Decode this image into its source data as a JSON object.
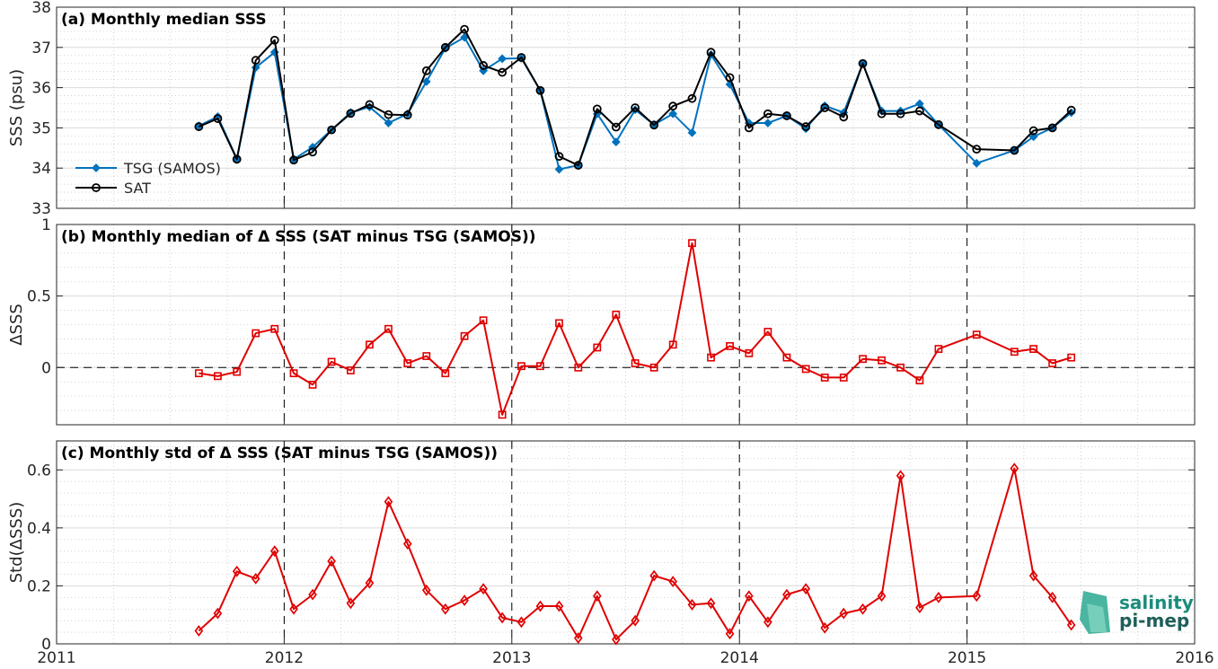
{
  "colors": {
    "tsg": "#0072BD",
    "sat": "#000000",
    "delta": "#E00000"
  },
  "logo": {
    "line1": "salinity",
    "line2": "pi-mep"
  },
  "chart_data": [
    {
      "type": "line",
      "title": "(a) Monthly median SSS",
      "ylabel": "SSS (psu)",
      "xlim": [
        2011,
        2016
      ],
      "ylim": [
        33,
        38
      ],
      "xticks": [
        2011,
        2012,
        2013,
        2014,
        2015,
        2016
      ],
      "yticks": [
        33,
        34,
        35,
        36,
        37,
        38
      ],
      "legend": "left",
      "series": [
        {
          "name": "TSG (SAMOS)",
          "color": "#0072BD",
          "marker": "filled-diamond",
          "x": [
            2011.625,
            2011.708,
            2011.792,
            2011.875,
            2011.958,
            2012.042,
            2012.125,
            2012.208,
            2012.292,
            2012.375,
            2012.458,
            2012.542,
            2012.625,
            2012.708,
            2012.792,
            2012.875,
            2012.958,
            2013.042,
            2013.125,
            2013.208,
            2013.292,
            2013.375,
            2013.458,
            2013.542,
            2013.625,
            2013.708,
            2013.792,
            2013.875,
            2013.958,
            2014.042,
            2014.125,
            2014.208,
            2014.292,
            2014.375,
            2014.458,
            2014.542,
            2014.625,
            2014.708,
            2014.792,
            2014.875,
            2015.042,
            2015.208,
            2015.292,
            2015.375,
            2015.458
          ],
          "values": [
            35.05,
            35.28,
            34.23,
            36.5,
            36.88,
            34.22,
            34.52,
            34.95,
            35.38,
            35.52,
            35.12,
            35.35,
            36.15,
            36.98,
            37.25,
            36.42,
            36.72,
            36.73,
            35.93,
            33.97,
            34.07,
            35.35,
            34.65,
            35.45,
            35.08,
            35.35,
            34.88,
            36.82,
            36.08,
            35.12,
            35.12,
            35.3,
            34.98,
            35.55,
            35.38,
            36.6,
            35.42,
            35.42,
            35.6,
            35.08,
            34.12,
            34.44,
            34.78,
            35.0,
            35.38
          ]
        },
        {
          "name": "SAT",
          "color": "#000000",
          "marker": "open-circle",
          "x": [
            2011.625,
            2011.708,
            2011.792,
            2011.875,
            2011.958,
            2012.042,
            2012.125,
            2012.208,
            2012.292,
            2012.375,
            2012.458,
            2012.542,
            2012.625,
            2012.708,
            2012.792,
            2012.875,
            2012.958,
            2013.042,
            2013.125,
            2013.208,
            2013.292,
            2013.375,
            2013.458,
            2013.542,
            2013.625,
            2013.708,
            2013.792,
            2013.875,
            2013.958,
            2014.042,
            2014.125,
            2014.208,
            2014.292,
            2014.375,
            2014.458,
            2014.542,
            2014.625,
            2014.708,
            2014.792,
            2014.875,
            2015.042,
            2015.208,
            2015.292,
            2015.375,
            2015.458
          ],
          "values": [
            35.03,
            35.23,
            34.22,
            36.68,
            37.18,
            34.2,
            34.4,
            34.95,
            35.36,
            35.58,
            35.33,
            35.32,
            36.42,
            37.0,
            37.45,
            36.55,
            36.38,
            36.75,
            35.93,
            34.29,
            34.07,
            35.47,
            35.02,
            35.5,
            35.07,
            35.54,
            35.73,
            36.88,
            36.25,
            35.0,
            35.35,
            35.3,
            35.03,
            35.5,
            35.27,
            36.6,
            35.35,
            35.35,
            35.42,
            35.08,
            34.47,
            34.44,
            34.93,
            35.0,
            35.44
          ]
        }
      ]
    },
    {
      "type": "line",
      "title": "(b) Monthly median of Δ SSS (SAT minus TSG (SAMOS))",
      "ylabel": "ΔSSS",
      "xlim": [
        2011,
        2016
      ],
      "ylim": [
        -0.4,
        1
      ],
      "xticks": [
        2011,
        2012,
        2013,
        2014,
        2015,
        2016
      ],
      "yticks": [
        0,
        0.5,
        1
      ],
      "zero_line": true,
      "series": [
        {
          "name": "",
          "color": "#E00000",
          "marker": "open-square",
          "x": [
            2011.625,
            2011.708,
            2011.792,
            2011.875,
            2011.958,
            2012.042,
            2012.125,
            2012.208,
            2012.292,
            2012.375,
            2012.458,
            2012.542,
            2012.625,
            2012.708,
            2012.792,
            2012.875,
            2012.958,
            2013.042,
            2013.125,
            2013.208,
            2013.292,
            2013.375,
            2013.458,
            2013.542,
            2013.625,
            2013.708,
            2013.792,
            2013.875,
            2013.958,
            2014.042,
            2014.125,
            2014.208,
            2014.292,
            2014.375,
            2014.458,
            2014.542,
            2014.625,
            2014.708,
            2014.792,
            2014.875,
            2015.042,
            2015.208,
            2015.292,
            2015.375,
            2015.458
          ],
          "values": [
            -0.04,
            -0.06,
            -0.03,
            0.24,
            0.27,
            -0.04,
            -0.12,
            0.04,
            -0.02,
            0.16,
            0.27,
            0.03,
            0.08,
            -0.04,
            0.22,
            0.33,
            -0.33,
            0.01,
            0.01,
            0.31,
            0.0,
            0.14,
            0.37,
            0.03,
            0.0,
            0.16,
            0.87,
            0.07,
            0.15,
            0.1,
            0.25,
            0.07,
            -0.01,
            -0.07,
            -0.07,
            0.06,
            0.05,
            0.0,
            -0.09,
            0.13,
            0.23,
            0.11,
            0.13,
            0.03,
            0.07
          ]
        }
      ]
    },
    {
      "type": "line",
      "title": "(c) Monthly std of Δ SSS (SAT minus TSG (SAMOS))",
      "ylabel": "Std(ΔSSS)",
      "xlim": [
        2011,
        2016
      ],
      "ylim": [
        0,
        0.7
      ],
      "xticks": [
        2011,
        2012,
        2013,
        2014,
        2015,
        2016
      ],
      "yticks": [
        0,
        0.2,
        0.4,
        0.6
      ],
      "series": [
        {
          "name": "",
          "color": "#E00000",
          "marker": "open-diamond",
          "x": [
            2011.625,
            2011.708,
            2011.792,
            2011.875,
            2011.958,
            2012.042,
            2012.125,
            2012.208,
            2012.292,
            2012.375,
            2012.458,
            2012.542,
            2012.625,
            2012.708,
            2012.792,
            2012.875,
            2012.958,
            2013.042,
            2013.125,
            2013.208,
            2013.292,
            2013.375,
            2013.458,
            2013.542,
            2013.625,
            2013.708,
            2013.792,
            2013.875,
            2013.958,
            2014.042,
            2014.125,
            2014.208,
            2014.292,
            2014.375,
            2014.458,
            2014.542,
            2014.625,
            2014.708,
            2014.792,
            2014.875,
            2015.042,
            2015.208,
            2015.292,
            2015.375,
            2015.458
          ],
          "values": [
            0.045,
            0.105,
            0.25,
            0.225,
            0.32,
            0.12,
            0.17,
            0.285,
            0.14,
            0.21,
            0.49,
            0.345,
            0.185,
            0.12,
            0.15,
            0.19,
            0.09,
            0.075,
            0.13,
            0.13,
            0.02,
            0.165,
            0.015,
            0.08,
            0.235,
            0.215,
            0.135,
            0.14,
            0.035,
            0.165,
            0.075,
            0.17,
            0.19,
            0.055,
            0.105,
            0.12,
            0.165,
            0.58,
            0.125,
            0.16,
            0.165,
            0.605,
            0.235,
            0.16,
            0.065
          ]
        }
      ]
    }
  ]
}
